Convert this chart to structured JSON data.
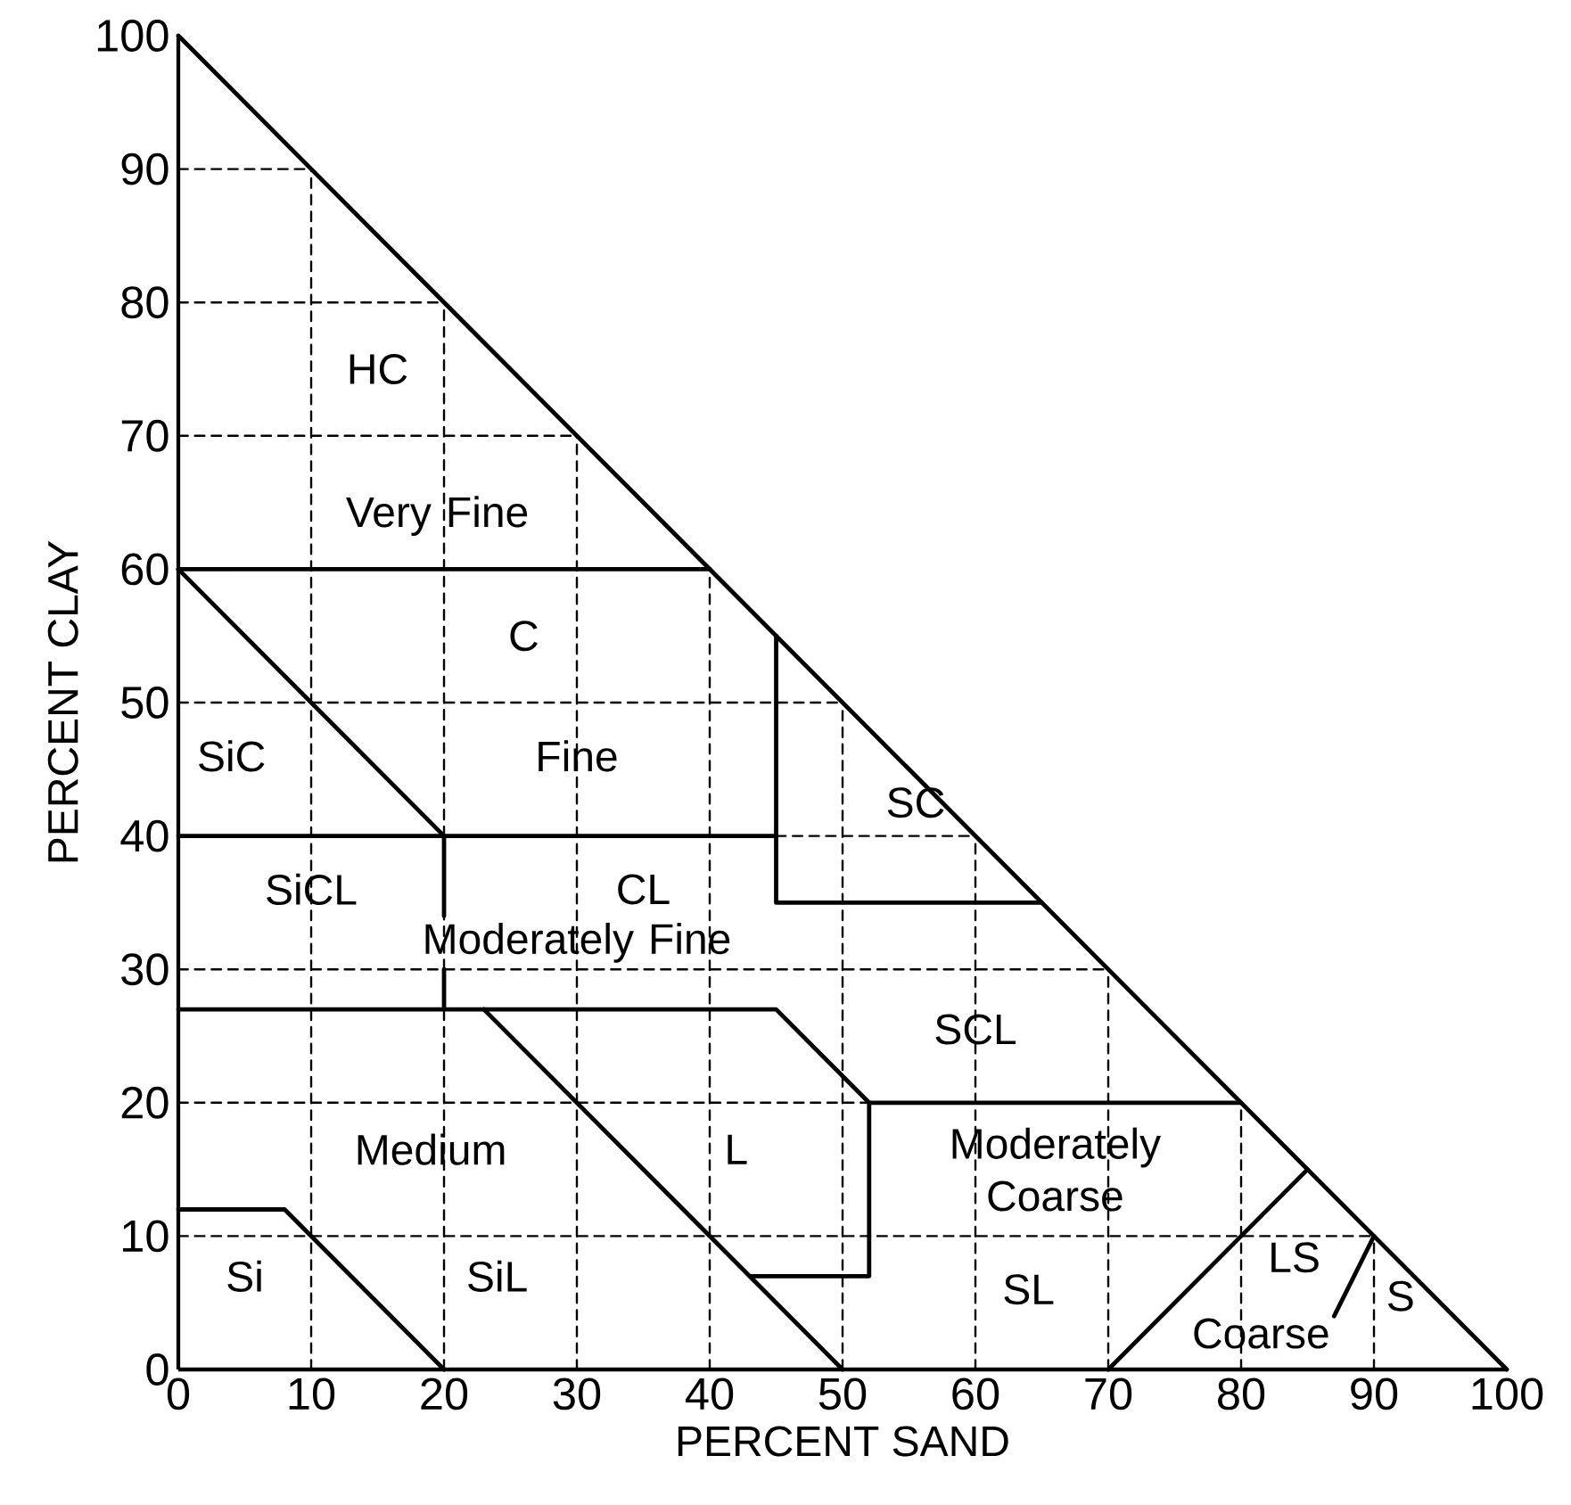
{
  "chart_data": {
    "type": "line",
    "xlabel": "PERCENT SAND",
    "ylabel": "PERCENT CLAY",
    "xlim": [
      0,
      100
    ],
    "ylim": [
      0,
      100
    ],
    "xticks": [
      0,
      10,
      20,
      30,
      40,
      50,
      60,
      70,
      80,
      90,
      100
    ],
    "yticks": [
      0,
      10,
      20,
      30,
      40,
      50,
      60,
      70,
      80,
      90,
      100
    ],
    "series": [
      {
        "color": "#000000",
        "line_style": "dashed",
        "x": [
          0,
          90
        ],
        "values": [
          10,
          10
        ]
      },
      {
        "color": "#000000",
        "line_style": "dashed",
        "x": [
          0,
          52
        ],
        "values": [
          20,
          20
        ]
      },
      {
        "color": "#000000",
        "line_style": "dashed",
        "x": [
          0,
          70
        ],
        "values": [
          30,
          30
        ]
      },
      {
        "color": "#000000",
        "line_style": "dashed",
        "x": [
          45,
          60
        ],
        "values": [
          40,
          40
        ]
      },
      {
        "color": "#000000",
        "line_style": "dashed",
        "x": [
          0,
          50
        ],
        "values": [
          50,
          50
        ]
      },
      {
        "color": "#000000",
        "line_style": "dashed",
        "x": [
          0,
          30
        ],
        "values": [
          70,
          70
        ]
      },
      {
        "color": "#000000",
        "line_style": "dashed",
        "x": [
          0,
          20
        ],
        "values": [
          80,
          80
        ]
      },
      {
        "color": "#000000",
        "line_style": "dashed",
        "x": [
          0,
          10
        ],
        "values": [
          90,
          90
        ]
      },
      {
        "color": "#000000",
        "line_style": "dashed",
        "x": [
          10,
          10
        ],
        "values": [
          0,
          90
        ]
      },
      {
        "color": "#000000",
        "line_style": "dashed",
        "x": [
          20,
          20
        ],
        "values": [
          0,
          27
        ]
      },
      {
        "color": "#000000",
        "line_style": "dashed",
        "x": [
          20,
          20
        ],
        "values": [
          30,
          34
        ]
      },
      {
        "color": "#000000",
        "line_style": "dashed",
        "x": [
          20,
          20
        ],
        "values": [
          40,
          80
        ]
      },
      {
        "color": "#000000",
        "line_style": "dashed",
        "x": [
          30,
          30
        ],
        "values": [
          0,
          70
        ]
      },
      {
        "color": "#000000",
        "line_style": "dashed",
        "x": [
          40,
          40
        ],
        "values": [
          0,
          60
        ]
      },
      {
        "color": "#000000",
        "line_style": "dashed",
        "x": [
          50,
          50
        ],
        "values": [
          0,
          50
        ]
      },
      {
        "color": "#000000",
        "line_style": "dashed",
        "x": [
          60,
          60
        ],
        "values": [
          0,
          40
        ]
      },
      {
        "color": "#000000",
        "line_style": "dashed",
        "x": [
          70,
          70
        ],
        "values": [
          0,
          30
        ]
      },
      {
        "color": "#000000",
        "line_style": "dashed",
        "x": [
          80,
          80
        ],
        "values": [
          0,
          20
        ]
      },
      {
        "color": "#000000",
        "line_style": "dashed",
        "x": [
          90,
          90
        ],
        "values": [
          0,
          10
        ]
      },
      {
        "color": "#000000",
        "x": [
          0,
          100
        ],
        "values": [
          100,
          0
        ]
      },
      {
        "color": "#000000",
        "x": [
          0,
          40
        ],
        "values": [
          60,
          60
        ]
      },
      {
        "color": "#000000",
        "x": [
          0,
          20
        ],
        "values": [
          60,
          40
        ]
      },
      {
        "color": "#000000",
        "x": [
          0,
          45,
          45,
          65
        ],
        "values": [
          40,
          40,
          35,
          35
        ]
      },
      {
        "color": "#000000",
        "x": [
          45,
          45
        ],
        "values": [
          40,
          55
        ]
      },
      {
        "color": "#000000",
        "x": [
          20,
          20
        ],
        "values": [
          40,
          34
        ]
      },
      {
        "color": "#000000",
        "x": [
          20,
          20
        ],
        "values": [
          30,
          27
        ]
      },
      {
        "color": "#000000",
        "x": [
          0,
          45,
          52,
          80
        ],
        "values": [
          27,
          27,
          20,
          20
        ]
      },
      {
        "color": "#000000",
        "x": [
          52,
          52,
          43
        ],
        "values": [
          20,
          7,
          7
        ]
      },
      {
        "color": "#000000",
        "x": [
          23,
          50
        ],
        "values": [
          27,
          0
        ]
      },
      {
        "color": "#000000",
        "x": [
          0,
          8,
          20
        ],
        "values": [
          12,
          12,
          0
        ]
      },
      {
        "color": "#000000",
        "x": [
          70,
          85
        ],
        "values": [
          0,
          15
        ]
      },
      {
        "color": "#000000",
        "x": [
          87,
          90
        ],
        "values": [
          4,
          10
        ]
      }
    ],
    "annotations": [
      "HC",
      "Very Fine",
      "C",
      "SiC",
      "Fine",
      "SC",
      "SiCL",
      "CL",
      "Moderately Fine",
      "SCL",
      "Medium",
      "L",
      "Moderately Coarse",
      "Si",
      "SiL",
      "SL",
      "LS",
      "S",
      "Coarse"
    ]
  }
}
